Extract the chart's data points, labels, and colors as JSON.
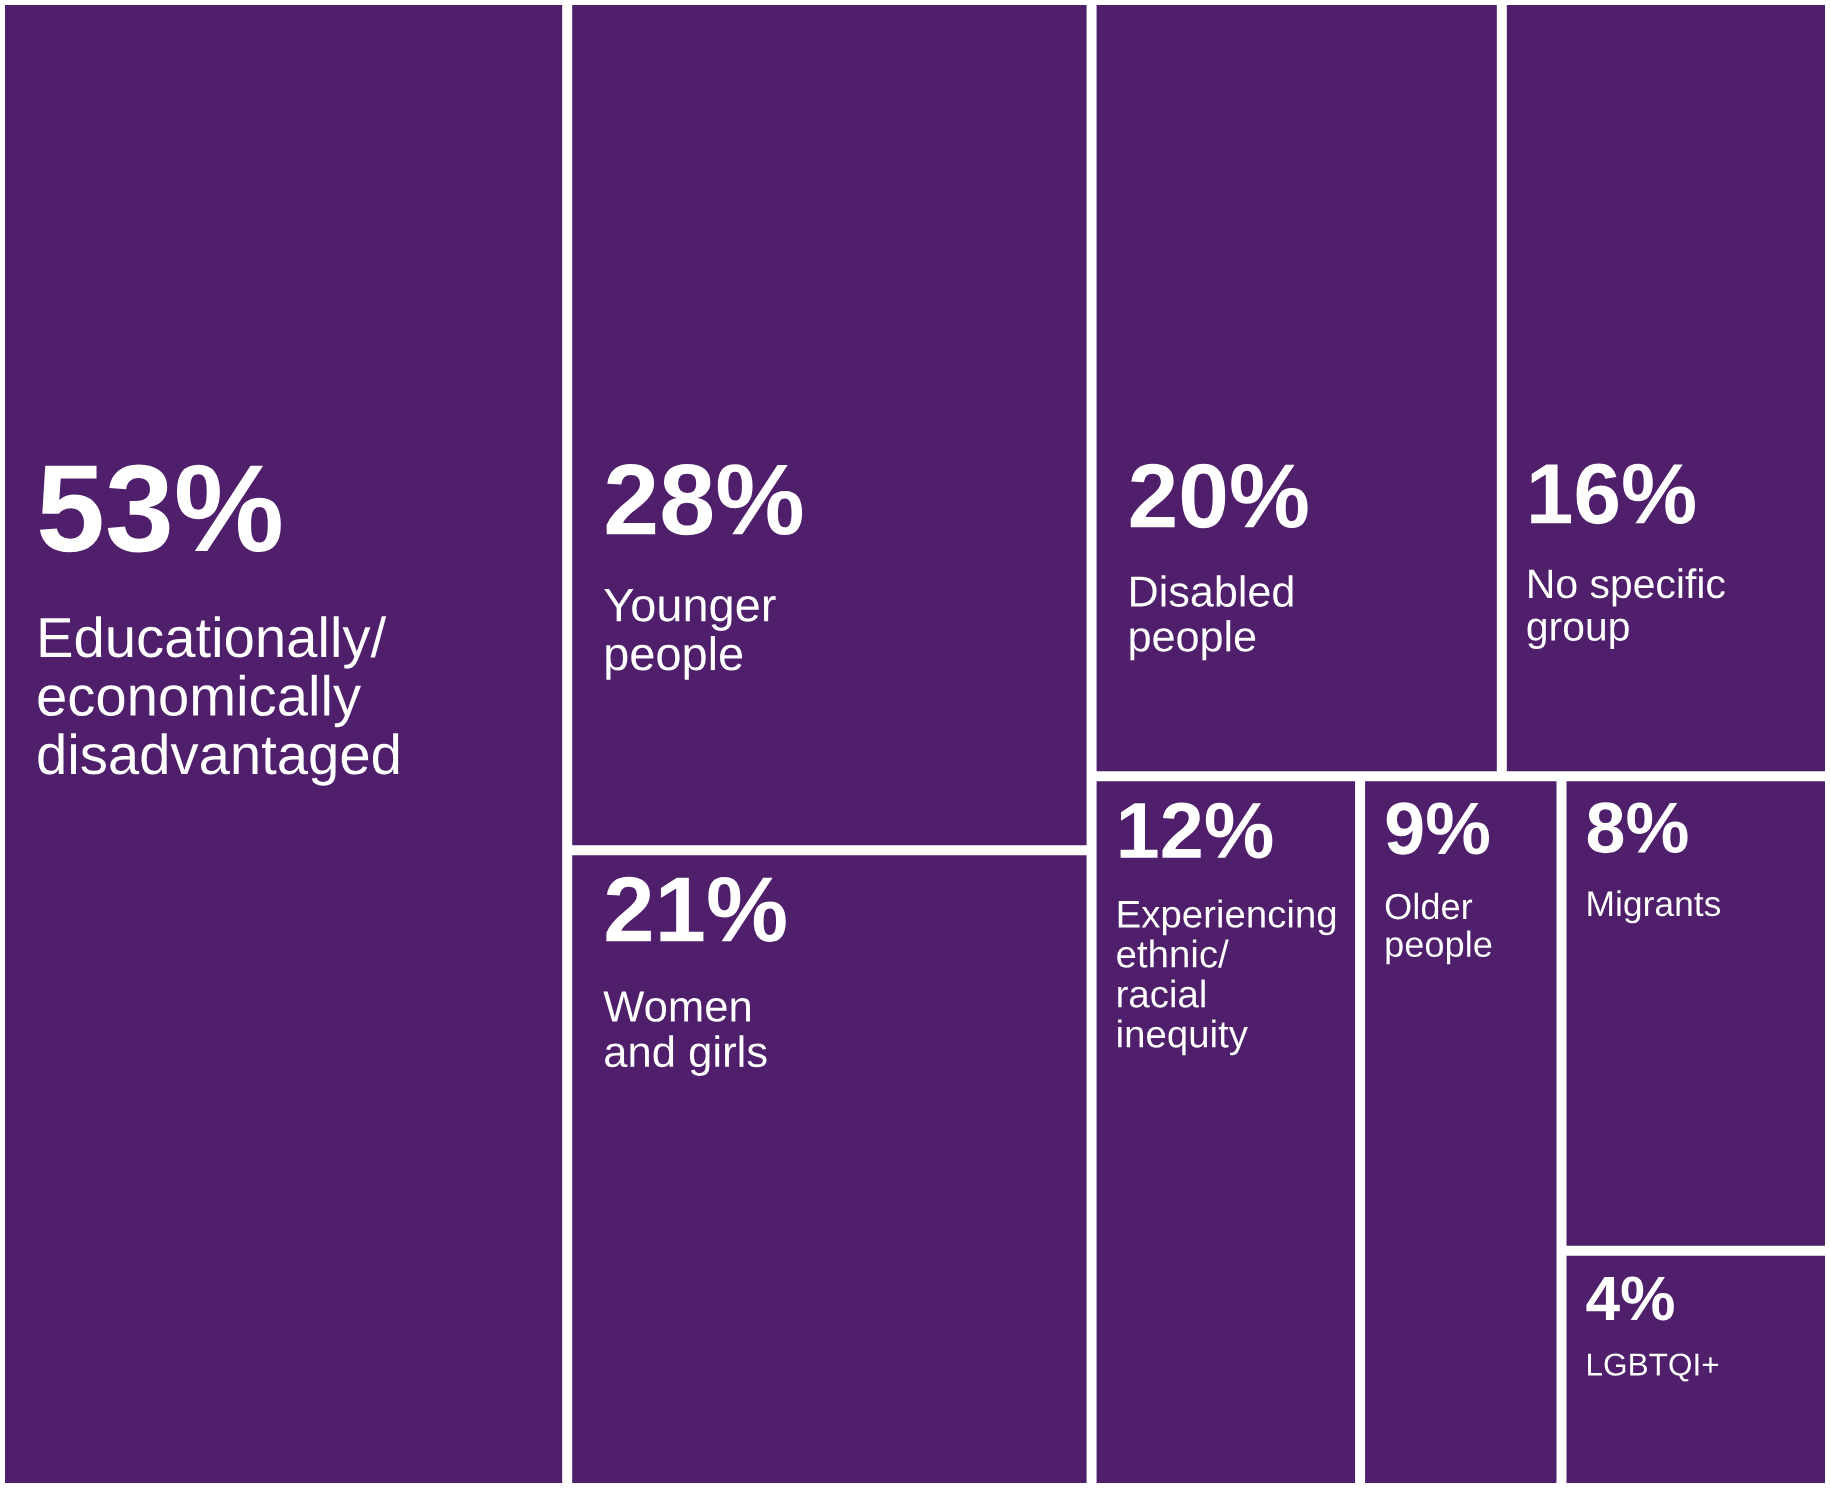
{
  "chart_data": {
    "type": "other",
    "categories": [
      "Educationally/\neconomically\ndisadvantaged",
      "Younger\npeople",
      "Women\nand girls",
      "Disabled\npeople",
      "No specific\ngroup",
      "Experiencing\nethnic/\nracial\ninequity",
      "Older\npeople",
      "Migrants",
      "LGBTQI+"
    ],
    "values": [
      53,
      28,
      21,
      20,
      16,
      12,
      9,
      8,
      4
    ],
    "value_labels": [
      "53%",
      "28%",
      "21%",
      "20%",
      "16%",
      "12%",
      "9%",
      "8%",
      "4%"
    ],
    "color": "#4f1f6b"
  }
}
